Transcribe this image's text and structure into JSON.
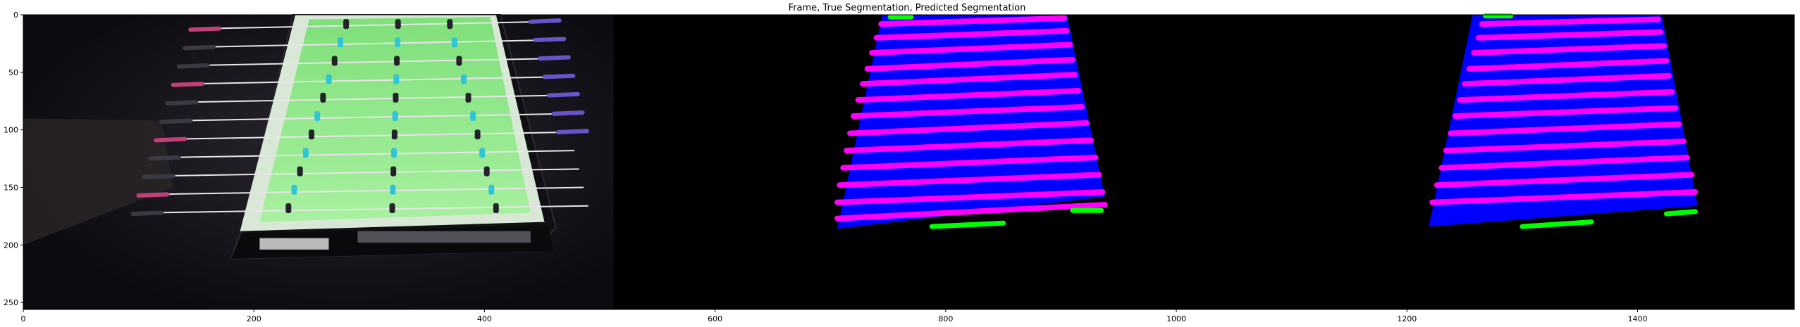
{
  "chart_data": {
    "type": "image",
    "title": "Frame, True Segmentation, Predicted Segmentation",
    "xlim": [
      0,
      1536
    ],
    "ylim": [
      256,
      0
    ],
    "xticks": [
      0,
      200,
      400,
      600,
      800,
      1000,
      1200,
      1400
    ],
    "yticks": [
      0,
      50,
      100,
      150,
      200,
      250
    ],
    "xlabel": "",
    "ylabel": "",
    "panels": [
      {
        "name": "Frame",
        "x_range": [
          0,
          512
        ]
      },
      {
        "name": "True Segmentation",
        "x_range": [
          512,
          1024
        ]
      },
      {
        "name": "Predicted Segmentation",
        "x_range": [
          1024,
          1536
        ]
      }
    ],
    "colors": {
      "table": "#0000ff",
      "rods": "#ff00ff",
      "goals": "#00ff00",
      "background": "#000000"
    },
    "segmentation": {
      "true": {
        "table": [
          [
            745,
            0
          ],
          [
            905,
            0
          ],
          [
            938,
            158
          ],
          [
            706,
            186
          ]
        ],
        "goals": [
          [
            [
              752,
              2
            ],
            [
              770,
              2
            ]
          ],
          [
            [
              788,
              184
            ],
            [
              850,
              181
            ]
          ],
          [
            [
              910,
              170
            ],
            [
              935,
              170
            ]
          ]
        ],
        "rods": [
          [
            [
              744,
              8
            ],
            [
              903,
              3
            ]
          ],
          [
            [
              740,
              20
            ],
            [
              905,
              14
            ]
          ],
          [
            [
              736,
              33
            ],
            [
              908,
              26
            ]
          ],
          [
            [
              732,
              47
            ],
            [
              910,
              39
            ]
          ],
          [
            [
              728,
              60
            ],
            [
              912,
              52
            ]
          ],
          [
            [
              724,
              74
            ],
            [
              915,
              66
            ]
          ],
          [
            [
              720,
              88
            ],
            [
              918,
              80
            ]
          ],
          [
            [
              717,
              103
            ],
            [
              922,
              94
            ]
          ],
          [
            [
              714,
              118
            ],
            [
              926,
              109
            ]
          ],
          [
            [
              711,
              133
            ],
            [
              930,
              124
            ]
          ],
          [
            [
              708,
              148
            ],
            [
              933,
              139
            ]
          ],
          [
            [
              706,
              163
            ],
            [
              936,
              154
            ]
          ],
          [
            [
              706,
              177
            ],
            [
              938,
              165
            ]
          ]
        ]
      },
      "predicted": {
        "table": [
          [
            1257,
            0
          ],
          [
            1421,
            0
          ],
          [
            1452,
            166
          ],
          [
            1219,
            184
          ]
        ],
        "goals": [
          [
            [
              1268,
              1
            ],
            [
              1290,
              1
            ]
          ],
          [
            [
              1300,
              184
            ],
            [
              1360,
              180
            ]
          ],
          [
            [
              1425,
              173
            ],
            [
              1450,
              171
            ]
          ]
        ],
        "rods": [
          [
            [
              1265,
              8
            ],
            [
              1418,
              4
            ]
          ],
          [
            [
              1262,
              20
            ],
            [
              1420,
              15
            ]
          ],
          [
            [
              1258,
              33
            ],
            [
              1423,
              27
            ]
          ],
          [
            [
              1254,
              47
            ],
            [
              1425,
              40
            ]
          ],
          [
            [
              1250,
              60
            ],
            [
              1427,
              53
            ]
          ],
          [
            [
              1246,
              74
            ],
            [
              1430,
              67
            ]
          ],
          [
            [
              1242,
              88
            ],
            [
              1433,
              81
            ]
          ],
          [
            [
              1238,
              103
            ],
            [
              1436,
              95
            ]
          ],
          [
            [
              1234,
              118
            ],
            [
              1440,
              110
            ]
          ],
          [
            [
              1230,
              133
            ],
            [
              1443,
              124
            ]
          ],
          [
            [
              1226,
              148
            ],
            [
              1447,
              139
            ]
          ],
          [
            [
              1222,
              163
            ],
            [
              1450,
              154
            ]
          ]
        ]
      }
    }
  }
}
